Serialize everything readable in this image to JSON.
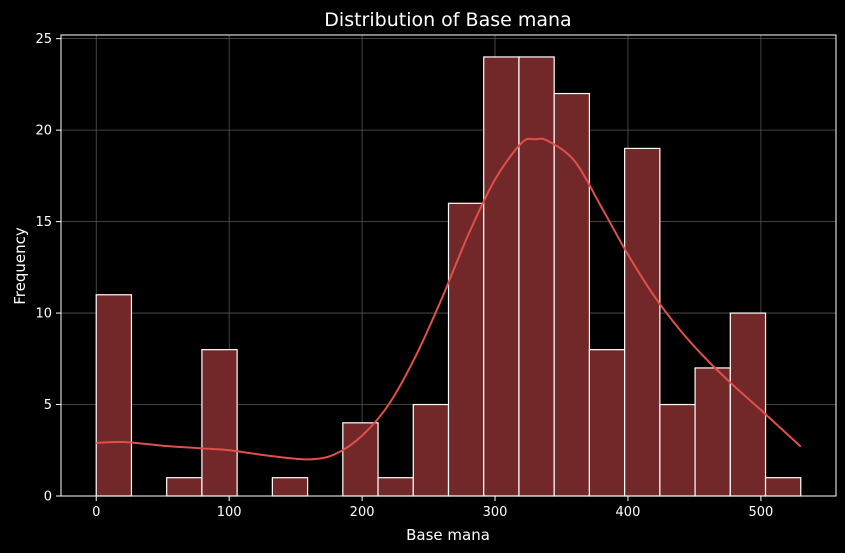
{
  "chart_data": {
    "type": "bar",
    "title": "Distribution of Base mana",
    "xlabel": "Base mana",
    "ylabel": "Frequency",
    "xlim": [
      -26.5,
      556.5
    ],
    "ylim": [
      0,
      25.2
    ],
    "xticks": [
      0,
      100,
      200,
      300,
      400,
      500
    ],
    "yticks": [
      0,
      5,
      10,
      15,
      20,
      25
    ],
    "grid": true,
    "bin_width": 26.5,
    "bins": [
      {
        "start": 0,
        "end": 26.5,
        "count": 11
      },
      {
        "start": 26.5,
        "end": 53,
        "count": 0
      },
      {
        "start": 53,
        "end": 79.5,
        "count": 1
      },
      {
        "start": 79.5,
        "end": 106,
        "count": 8
      },
      {
        "start": 106,
        "end": 132.5,
        "count": 0
      },
      {
        "start": 132.5,
        "end": 159,
        "count": 1
      },
      {
        "start": 159,
        "end": 185.5,
        "count": 0
      },
      {
        "start": 185.5,
        "end": 212,
        "count": 4
      },
      {
        "start": 212,
        "end": 238.5,
        "count": 1
      },
      {
        "start": 238.5,
        "end": 265,
        "count": 5
      },
      {
        "start": 265,
        "end": 291.5,
        "count": 16
      },
      {
        "start": 291.5,
        "end": 318,
        "count": 24
      },
      {
        "start": 318,
        "end": 344.5,
        "count": 24
      },
      {
        "start": 344.5,
        "end": 371,
        "count": 22
      },
      {
        "start": 371,
        "end": 397.5,
        "count": 8
      },
      {
        "start": 397.5,
        "end": 424,
        "count": 19
      },
      {
        "start": 424,
        "end": 450.5,
        "count": 5
      },
      {
        "start": 450.5,
        "end": 477,
        "count": 7
      },
      {
        "start": 477,
        "end": 503.5,
        "count": 10
      },
      {
        "start": 503.5,
        "end": 530,
        "count": 1
      }
    ],
    "kde": {
      "x": [
        0,
        20,
        50,
        80,
        100,
        130,
        160,
        180,
        200,
        220,
        240,
        260,
        280,
        300,
        320,
        330,
        340,
        360,
        380,
        400,
        420,
        440,
        460,
        480,
        500,
        530
      ],
      "y": [
        2.9,
        2.95,
        2.75,
        2.6,
        2.5,
        2.2,
        2.0,
        2.3,
        3.3,
        5.0,
        7.6,
        10.8,
        14.3,
        17.3,
        19.3,
        19.5,
        19.4,
        18.3,
        15.8,
        13.2,
        10.9,
        9.0,
        7.4,
        6.0,
        4.7,
        2.7
      ]
    },
    "colors": {
      "bar_fill": "#722828",
      "bar_edge": "#ffffff",
      "kde_line": "#e0504a",
      "grid": "#555555",
      "background": "#000000"
    }
  }
}
